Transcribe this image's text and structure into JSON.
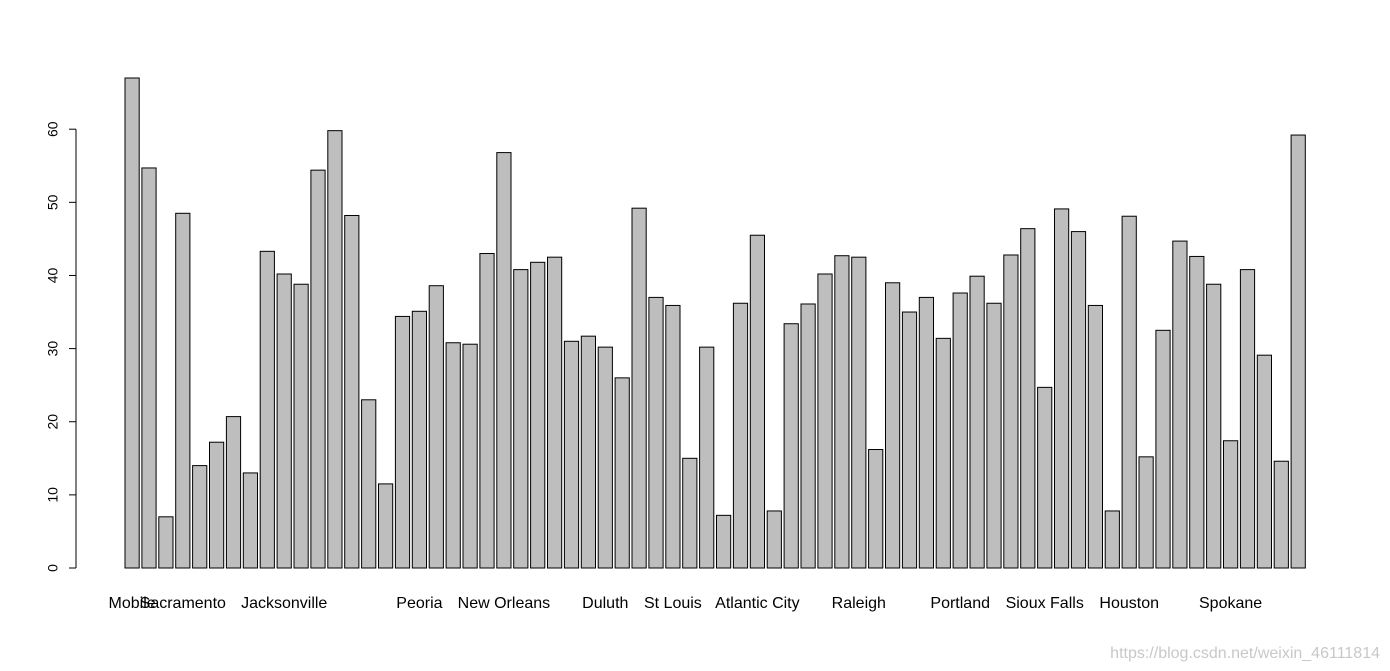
{
  "chart_data": {
    "type": "bar",
    "title": "",
    "xlabel": "",
    "ylabel": "",
    "ylim": [
      0,
      67
    ],
    "yticks": [
      0,
      10,
      20,
      30,
      40,
      50,
      60
    ],
    "grid": false,
    "bar_fill": "#bebebe",
    "bar_stroke": "#000000",
    "values": [
      67.0,
      54.7,
      7.0,
      48.5,
      14.0,
      17.2,
      20.7,
      13.0,
      43.3,
      40.2,
      38.8,
      54.4,
      59.8,
      48.2,
      23.0,
      11.5,
      34.4,
      35.1,
      38.6,
      30.8,
      30.6,
      43.0,
      56.8,
      40.8,
      41.8,
      42.5,
      31.0,
      31.7,
      30.2,
      26.0,
      49.2,
      37.0,
      35.9,
      15.0,
      30.2,
      7.2,
      36.2,
      45.5,
      7.8,
      33.4,
      36.1,
      40.2,
      42.7,
      42.5,
      16.2,
      39.0,
      35.0,
      37.0,
      31.4,
      37.6,
      39.9,
      36.2,
      42.8,
      46.4,
      24.7,
      49.1,
      46.0,
      35.9,
      7.8,
      48.1,
      15.2,
      32.5,
      44.7,
      42.6,
      38.8,
      17.4,
      40.8,
      29.1,
      14.6,
      59.2
    ],
    "category_labels": [
      {
        "index": 0,
        "label": "Mobile"
      },
      {
        "index": 3,
        "label": "Sacramento"
      },
      {
        "index": 9,
        "label": "Jacksonville"
      },
      {
        "index": 17,
        "label": "Peoria"
      },
      {
        "index": 22,
        "label": "New Orleans"
      },
      {
        "index": 28,
        "label": "Duluth"
      },
      {
        "index": 32,
        "label": "St Louis"
      },
      {
        "index": 37,
        "label": "Atlantic City"
      },
      {
        "index": 43,
        "label": "Raleigh"
      },
      {
        "index": 49,
        "label": "Portland"
      },
      {
        "index": 54,
        "label": "Sioux Falls"
      },
      {
        "index": 59,
        "label": "Houston"
      },
      {
        "index": 65,
        "label": "Spokane"
      }
    ]
  },
  "watermark": "https://blog.csdn.net/weixin_46111814"
}
